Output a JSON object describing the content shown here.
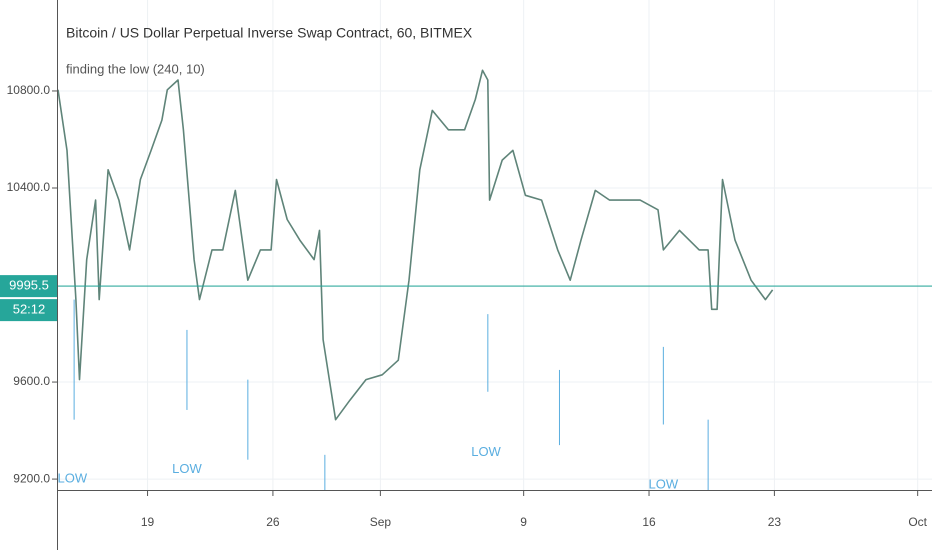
{
  "chart_data": {
    "type": "line",
    "title": "Bitcoin / US Dollar Perpetual Inverse Swap Contract, 60, BITMEX",
    "subtitle": "finding the low (240, 10)",
    "x": [
      14.0,
      14.5,
      15.0,
      15.2,
      15.6,
      16.1,
      16.3,
      16.8,
      17.4,
      18.0,
      18.6,
      19.2,
      19.8,
      20.1,
      20.7,
      21.0,
      21.6,
      21.9,
      22.6,
      23.2,
      23.9,
      24.6,
      25.3,
      25.9,
      26.2,
      26.8,
      27.5,
      28.3,
      28.6,
      28.8,
      29.5,
      30.3,
      31.2,
      32.1,
      33.0,
      33.6,
      34.2,
      34.9,
      35.8,
      36.7,
      37.3,
      37.7,
      38.0,
      38.1,
      38.8,
      39.4,
      40.1,
      41.0,
      41.9,
      42.6,
      43.2,
      44.0,
      44.8,
      45.7,
      46.5,
      47.5,
      47.8,
      48.7,
      49.8,
      50.3,
      50.5,
      50.8,
      51.1,
      51.8,
      52.7,
      53.5,
      53.9
    ],
    "series": [
      {
        "color": "#5f8479",
        "values": [
          10805,
          10555,
          9940,
          9610,
          10105,
          10350,
          9940,
          10475,
          10350,
          10145,
          10435,
          10555,
          10680,
          10805,
          10845,
          10640,
          10105,
          9940,
          10145,
          10145,
          10390,
          10020,
          10145,
          10145,
          10435,
          10270,
          10185,
          10105,
          10225,
          9775,
          9445,
          9525,
          9610,
          9630,
          9690,
          10020,
          10475,
          10720,
          10640,
          10640,
          10765,
          10885,
          10845,
          10350,
          10515,
          10555,
          10370,
          10350,
          10145,
          10020,
          10185,
          10390,
          10350,
          10350,
          10350,
          10310,
          10145,
          10225,
          10145,
          10145,
          9900,
          9900,
          10435,
          10185,
          10020,
          9940,
          9980
        ]
      }
    ],
    "low_lines": {
      "color": "#5aaee0",
      "x": [
        14.9,
        21.2,
        24.6,
        28.9,
        38.0,
        42.0,
        47.8,
        50.3
      ],
      "top": [
        9940,
        9815,
        9610,
        9300,
        9880,
        9650,
        9745,
        9445
      ],
      "bottom": [
        9445,
        9485,
        9280,
        9155,
        9560,
        9340,
        9425,
        9155
      ]
    },
    "annotations": [
      {
        "text": "LOW",
        "x": 14.8,
        "y": 9200
      },
      {
        "text": "LOW",
        "x": 21.2,
        "y": 9240
      },
      {
        "text": "LOW",
        "x": 37.9,
        "y": 9310
      },
      {
        "text": "LOW",
        "x": 47.8,
        "y": 9175
      }
    ],
    "last_price": 9995.5,
    "countdown": "52:12",
    "last_color": "#26a69a",
    "xlim": [
      14,
      62.8
    ],
    "ylim": [
      9155,
      11175
    ],
    "xticks": [
      19,
      26,
      {
        "value": 32,
        "label": "Sep"
      },
      {
        "value": 40,
        "label": "9"
      },
      {
        "value": 47,
        "label": "16"
      },
      {
        "value": 54,
        "label": "23"
      },
      {
        "value": 62,
        "label": "Oct"
      }
    ],
    "yticks": [
      {
        "value": 9200,
        "label": "9200.0"
      },
      {
        "value": 9600,
        "label": "9600.0"
      },
      {
        "value": 10400,
        "label": "10400.0"
      },
      {
        "value": 10800,
        "label": "10800.0"
      }
    ],
    "grid": true
  }
}
